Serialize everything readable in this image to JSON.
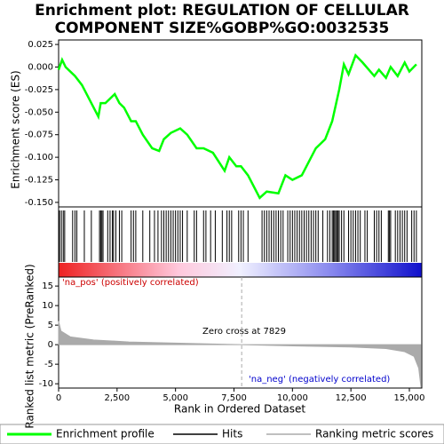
{
  "chart_data": {
    "type": "gsea",
    "title_lines": [
      "Enrichment plot: REGULATION OF CELLULAR",
      "COMPONENT SIZE%GOBP%GO:0032535"
    ],
    "y_label": "Enrichment score (ES)",
    "y2_label": "Ranked list metric (PreRanked)",
    "x_label": "Rank in Ordered Dataset",
    "xlim": [
      0,
      15532
    ],
    "xticks": [
      0,
      {
        "value": 2500,
        "label": "2,500"
      },
      {
        "value": 5000,
        "label": "5,000"
      },
      {
        "value": 7500,
        "label": "7,500"
      },
      {
        "value": 10000,
        "label": "10,000"
      },
      {
        "value": 12500,
        "label": "12,500"
      },
      {
        "value": 15000,
        "label": "15,000"
      }
    ],
    "ylim": [
      -0.155,
      0.03
    ],
    "yticks": [
      0.025,
      {
        "value": 0,
        "label": "0.000"
      },
      -0.025,
      {
        "value": -0.05,
        "label": "-0.050"
      },
      {
        "value": -0.075,
        "label": "-0.075"
      },
      {
        "value": -0.1,
        "label": "-0.100"
      },
      {
        "value": -0.125,
        "label": "-0.125"
      },
      {
        "value": -0.15,
        "label": "-0.150"
      }
    ],
    "y2lim": [
      -11.1,
      17.3
    ],
    "y2ticks": [
      -10,
      -5,
      0,
      5,
      10,
      15
    ],
    "zero_cross": 7829,
    "annotations": [
      "'na_pos' (positively correlated)",
      "Zero cross at 7829",
      "'na_neg' (negatively correlated)"
    ],
    "series": [
      {
        "name": "Enrichment profile",
        "color": "#00ff00",
        "x": [
          0,
          150,
          300,
          700,
          1000,
          1300,
          1700,
          1800,
          2000,
          2200,
          2400,
          2600,
          2800,
          3100,
          3300,
          3600,
          4000,
          4300,
          4500,
          4800,
          5200,
          5500,
          5900,
          6200,
          6600,
          7100,
          7300,
          7600,
          7800,
          8100,
          8600,
          8900,
          9400,
          9700,
          10000,
          10400,
          10700,
          11000,
          11400,
          11700,
          12000,
          12200,
          12400,
          12700,
          13000,
          13500,
          13700,
          14000,
          14200,
          14500,
          14800,
          15000,
          15300
        ],
        "values": [
          -0.003,
          0.008,
          0.0,
          -0.01,
          -0.02,
          -0.035,
          -0.055,
          -0.04,
          -0.04,
          -0.035,
          -0.03,
          -0.04,
          -0.045,
          -0.06,
          -0.06,
          -0.075,
          -0.09,
          -0.093,
          -0.08,
          -0.073,
          -0.068,
          -0.075,
          -0.09,
          -0.09,
          -0.095,
          -0.115,
          -0.1,
          -0.11,
          -0.11,
          -0.12,
          -0.145,
          -0.138,
          -0.14,
          -0.12,
          -0.125,
          -0.12,
          -0.105,
          -0.09,
          -0.08,
          -0.06,
          -0.025,
          0.003,
          -0.008,
          0.013,
          0.005,
          -0.01,
          -0.003,
          -0.012,
          0.0,
          -0.01,
          0.005,
          -0.005,
          0.003
        ]
      },
      {
        "name": "Hits",
        "color": "#000000",
        "x": [
          40,
          120,
          200,
          260,
          600,
          700,
          780,
          1100,
          1400,
          1750,
          1800,
          1850,
          1900,
          2100,
          2200,
          2300,
          2350,
          2450,
          2600,
          2700,
          3100,
          3200,
          3300,
          3600,
          3900,
          4100,
          4250,
          4400,
          4500,
          4600,
          4700,
          4800,
          4900,
          5000,
          5100,
          5200,
          5300,
          5500,
          5800,
          5900,
          6200,
          6300,
          6500,
          6700,
          7000,
          7200,
          7300,
          7400,
          7700,
          7800,
          7900,
          8100,
          8700,
          8800,
          8900,
          9000,
          9100,
          9200,
          9300,
          9400,
          9500,
          9600,
          9800,
          9900,
          10000,
          10100,
          10200,
          10300,
          10400,
          10500,
          10600,
          10700,
          10800,
          10900,
          11000,
          11100,
          11300,
          11500,
          11600,
          11700,
          11750,
          11800,
          11850,
          11900,
          11950,
          12000,
          12100,
          12200,
          12400,
          12500,
          12600,
          12700,
          12800,
          12900,
          13100,
          13200,
          13500,
          13600,
          13700,
          13800,
          14100,
          14150,
          14200,
          14400,
          14500,
          14600,
          14700,
          14800,
          14900,
          15100,
          15200,
          15300
        ]
      },
      {
        "name": "Ranking metric scores",
        "color": "#aaaaaa",
        "axis": "y2",
        "x": [
          0,
          100,
          500,
          1500,
          3000,
          5000,
          7829,
          10000,
          12500,
          14000,
          14800,
          15200,
          15400,
          15500
        ],
        "values": [
          6,
          3.5,
          2,
          1.2,
          0.7,
          0.4,
          0,
          -0.3,
          -0.6,
          -1,
          -1.8,
          -3,
          -6,
          -11
        ]
      }
    ]
  }
}
